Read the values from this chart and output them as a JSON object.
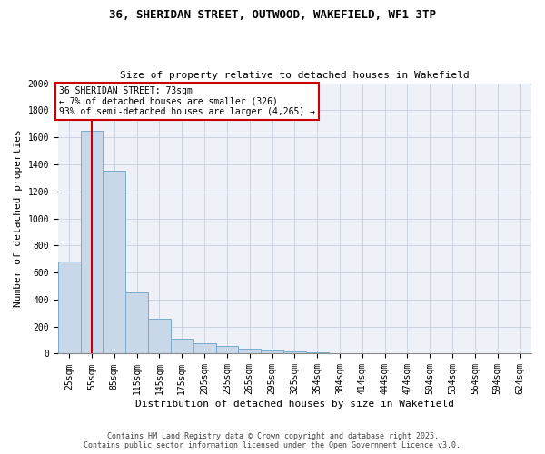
{
  "title_line1": "36, SHERIDAN STREET, OUTWOOD, WAKEFIELD, WF1 3TP",
  "title_line2": "Size of property relative to detached houses in Wakefield",
  "xlabel": "Distribution of detached houses by size in Wakefield",
  "ylabel": "Number of detached properties",
  "bin_labels": [
    "25sqm",
    "55sqm",
    "85sqm",
    "115sqm",
    "145sqm",
    "175sqm",
    "205sqm",
    "235sqm",
    "265sqm",
    "295sqm",
    "325sqm",
    "354sqm",
    "384sqm",
    "414sqm",
    "444sqm",
    "474sqm",
    "504sqm",
    "534sqm",
    "564sqm",
    "594sqm",
    "624sqm"
  ],
  "bar_heights": [
    680,
    1650,
    1350,
    450,
    260,
    110,
    75,
    55,
    35,
    20,
    15,
    8,
    5,
    3,
    2,
    1,
    1,
    0,
    0,
    0,
    0
  ],
  "bar_color": "#c8d8e8",
  "bar_edgecolor": "#7aabcc",
  "property_line_x": 1.0,
  "annotation_text": "36 SHERIDAN STREET: 73sqm\n← 7% of detached houses are smaller (326)\n93% of semi-detached houses are larger (4,265) →",
  "annotation_box_color": "#ffffff",
  "annotation_box_edgecolor": "#cc0000",
  "red_line_color": "#cc0000",
  "ylim": [
    0,
    2000
  ],
  "yticks": [
    0,
    200,
    400,
    600,
    800,
    1000,
    1200,
    1400,
    1600,
    1800,
    2000
  ],
  "grid_color": "#c0c8d8",
  "background_color": "#eef2f8",
  "footer_line1": "Contains HM Land Registry data © Crown copyright and database right 2025.",
  "footer_line2": "Contains public sector information licensed under the Open Government Licence v3.0."
}
